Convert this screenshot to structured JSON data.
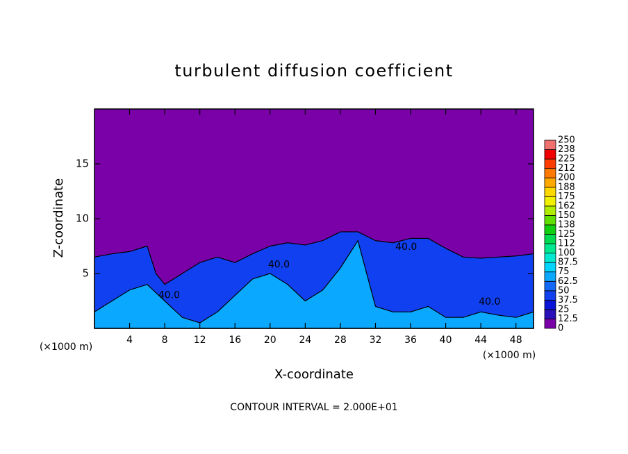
{
  "chart_data": {
    "type": "contour",
    "title": "turbulent diffusion coefficient",
    "xlabel": "X-coordinate",
    "ylabel": "Z-coordinate",
    "x_unit": "(×1000 m)",
    "z_unit": "(×1000 m)",
    "footnote": "CONTOUR INTERVAL = 2.000E+01",
    "xlim": [
      0,
      50
    ],
    "ylim": [
      0,
      20
    ],
    "xticks": [
      4,
      8,
      12,
      16,
      20,
      24,
      28,
      32,
      36,
      40,
      44,
      48
    ],
    "yticks": [
      5,
      10,
      15
    ],
    "background_value": 0,
    "colorbar": {
      "ticks": [
        0,
        12.5,
        25,
        37.5,
        50,
        62.5,
        75,
        87.5,
        100,
        112,
        125,
        138,
        150,
        162,
        175,
        188,
        200,
        212,
        225,
        238,
        250
      ],
      "colors": [
        "#7a00a8",
        "#2a10b8",
        "#0a14d8",
        "#1040f0",
        "#1468f8",
        "#0aa8ff",
        "#00d4ff",
        "#00e8d0",
        "#00e890",
        "#00dc50",
        "#10d010",
        "#60e000",
        "#b0ec00",
        "#f0f000",
        "#ffd800",
        "#ffa800",
        "#ff7800",
        "#ff3c00",
        "#f00000",
        "#f07070"
      ]
    },
    "layers": [
      {
        "value": 37.5,
        "x": [
          0,
          2,
          4,
          6,
          7,
          8,
          10,
          12,
          14,
          16,
          18,
          20,
          22,
          24,
          26,
          28,
          30,
          32,
          34,
          36,
          38,
          40,
          42,
          44,
          46,
          48,
          50
        ],
        "z": [
          6.5,
          6.8,
          7,
          7.5,
          5,
          4,
          5,
          6,
          6.5,
          6,
          6.8,
          7.5,
          7.8,
          7.6,
          8,
          8.8,
          8.8,
          8,
          7.8,
          8.2,
          8.2,
          7.3,
          6.5,
          6.4,
          6.5,
          6.6,
          6.8
        ]
      },
      {
        "value": 62.5,
        "x": [
          0,
          2,
          4,
          6,
          8,
          10,
          12,
          14,
          16,
          18,
          20,
          22,
          24,
          26,
          28,
          30,
          32,
          34,
          36,
          38,
          40,
          42,
          44,
          46,
          48,
          50
        ],
        "z": [
          1.5,
          2.5,
          3.5,
          4,
          2.5,
          1,
          0.5,
          1.5,
          3,
          4.5,
          5,
          4,
          2.5,
          3.5,
          5.5,
          8,
          2,
          1.5,
          1.5,
          2,
          1,
          1,
          1.5,
          1.2,
          1,
          1.5
        ]
      }
    ],
    "contour_labels": [
      {
        "text": "40.0",
        "x": 8.5,
        "z": 3
      },
      {
        "text": "40.0",
        "x": 21,
        "z": 5.8
      },
      {
        "text": "40.0",
        "x": 35.5,
        "z": 7.4
      },
      {
        "text": "40.0",
        "x": 45,
        "z": 2.4
      }
    ]
  }
}
